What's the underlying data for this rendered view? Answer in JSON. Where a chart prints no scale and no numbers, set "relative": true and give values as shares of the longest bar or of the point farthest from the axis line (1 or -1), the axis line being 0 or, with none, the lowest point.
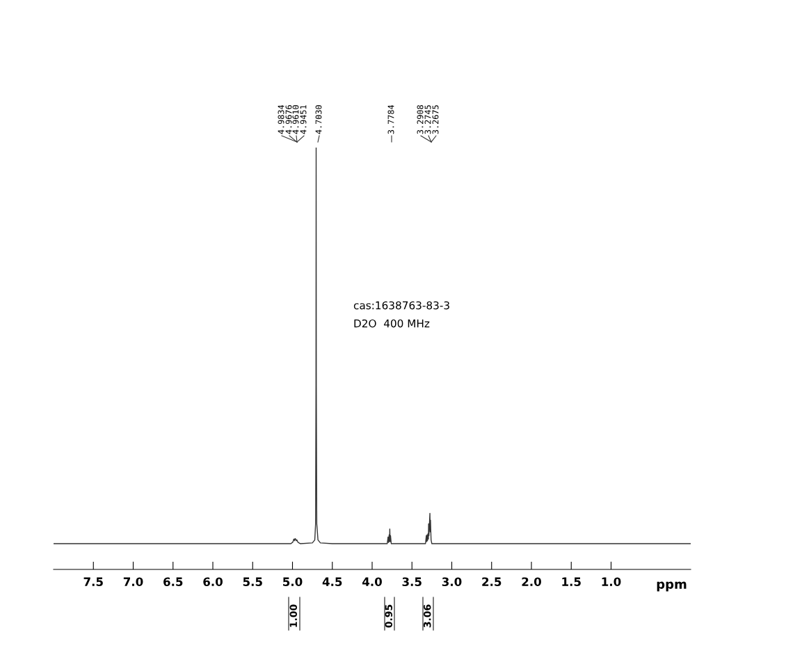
{
  "chart_data": {
    "type": "line",
    "relative": true,
    "xlabel": "ppm",
    "xlim": [
      8.0,
      0.0
    ],
    "xticks": [
      7.5,
      {
        "value": 7.0,
        "label": "7.0"
      },
      6.5,
      {
        "value": 6.0,
        "label": "6.0"
      },
      5.5,
      {
        "value": 5.0,
        "label": "5.0"
      },
      4.5,
      {
        "value": 4.0,
        "label": "4.0"
      },
      3.5,
      {
        "value": 3.0,
        "label": "3.0"
      },
      2.5,
      {
        "value": 2.0,
        "label": "2.0"
      },
      1.5,
      {
        "value": 1.0,
        "label": "1.0"
      }
    ],
    "grid": false,
    "marker": "none",
    "line_style": "solid",
    "series": [
      {
        "color": "#333333",
        "x": [
          8.0,
          5.02,
          4.995,
          4.9834,
          4.975,
          4.9676,
          4.961,
          4.953,
          4.9451,
          4.93,
          4.9,
          4.75,
          4.72,
          4.71,
          4.705,
          4.703,
          4.701,
          4.695,
          4.68,
          4.65,
          4.5,
          3.81,
          3.8,
          3.795,
          3.786,
          3.781,
          3.7784,
          3.774,
          3.769,
          3.76,
          3.33,
          3.32,
          3.315,
          3.31,
          3.305,
          3.298,
          3.294,
          3.2908,
          3.287,
          3.2745,
          3.271,
          3.2675,
          3.26,
          3.25,
          2.0,
          0.0
        ],
        "values": [
          0.061,
          0.061,
          0.065,
          0.072,
          0.068,
          0.073,
          0.072,
          0.068,
          0.07,
          0.064,
          0.061,
          0.063,
          0.07,
          0.108,
          0.437,
          1.0,
          0.437,
          0.108,
          0.07,
          0.063,
          0.061,
          0.061,
          0.077,
          0.064,
          0.082,
          0.066,
          0.096,
          0.066,
          0.08,
          0.061,
          0.061,
          0.08,
          0.066,
          0.082,
          0.068,
          0.085,
          0.072,
          0.108,
          0.08,
          0.133,
          0.089,
          0.117,
          0.07,
          0.061,
          0.061,
          0.061
        ]
      }
    ],
    "annotations": [
      "cas:1638763-83-3",
      "D2O  400 MHz",
      "4.9834",
      "4.9676",
      "4.9610",
      "4.9451",
      "4.7030",
      "3.7784",
      "3.2908",
      "3.2745",
      "3.2675",
      "1.00",
      "0.95",
      "3.06"
    ]
  }
}
